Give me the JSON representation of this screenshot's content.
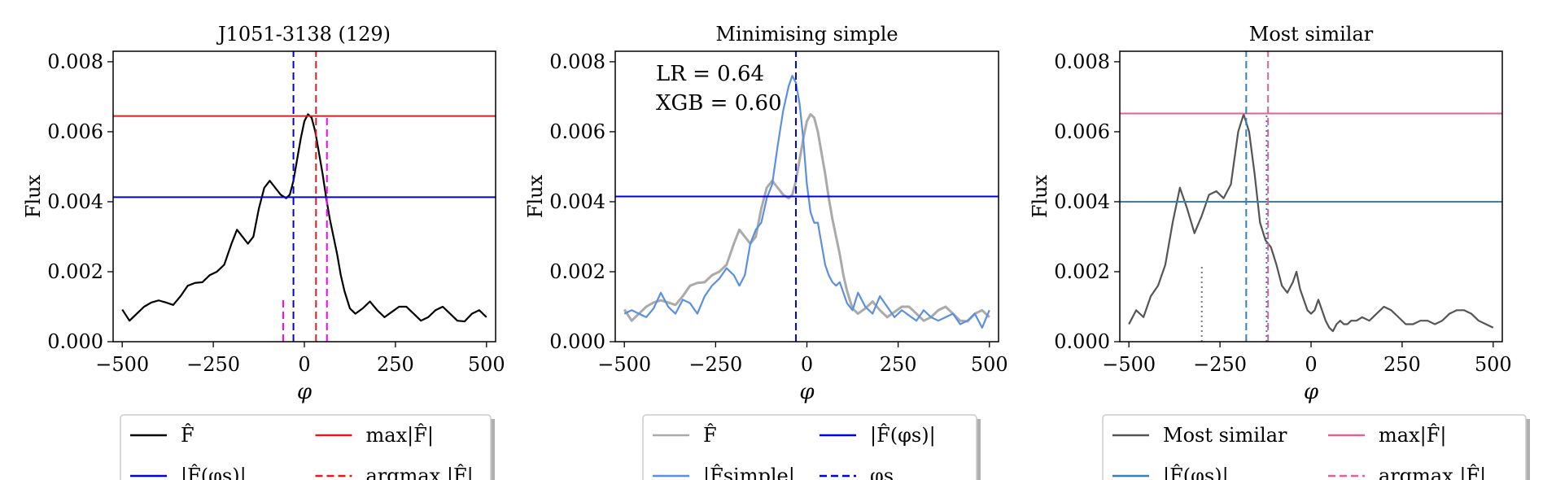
{
  "chart_data": [
    {
      "type": "line",
      "title": "J1051-3138 (129)",
      "xlabel": "φ",
      "ylabel": "Flux",
      "xlim": [
        -525,
        525
      ],
      "ylim": [
        0,
        0.0083
      ],
      "xticks": [
        -500,
        -250,
        0,
        250,
        500
      ],
      "xtick_labels": [
        "−500",
        "−250",
        "0",
        "250",
        "500"
      ],
      "yticks": [
        0,
        0.002,
        0.004,
        0.006,
        0.008
      ],
      "ytick_labels": [
        "0.000",
        "0.002",
        "0.004",
        "0.006",
        "0.008"
      ],
      "series": [
        {
          "name": "F̂",
          "color": "#000000",
          "style": "solid",
          "x": [
            -500,
            -480,
            -460,
            -440,
            -420,
            -400,
            -380,
            -360,
            -340,
            -320,
            -300,
            -280,
            -260,
            -240,
            -220,
            -200,
            -185,
            -170,
            -155,
            -140,
            -125,
            -110,
            -95,
            -80,
            -65,
            -50,
            -40,
            -30,
            -20,
            -10,
            0,
            10,
            20,
            30,
            40,
            50,
            60,
            70,
            80,
            90,
            100,
            110,
            125,
            140,
            160,
            180,
            200,
            220,
            240,
            260,
            280,
            300,
            320,
            340,
            360,
            380,
            400,
            420,
            440,
            460,
            480,
            500
          ],
          "y": [
            0.00092,
            0.0006,
            0.0008,
            0.001,
            0.00112,
            0.00118,
            0.00112,
            0.00105,
            0.0013,
            0.0016,
            0.00168,
            0.0017,
            0.0019,
            0.002,
            0.0022,
            0.0028,
            0.0032,
            0.003,
            0.0028,
            0.003,
            0.0038,
            0.0044,
            0.0046,
            0.0044,
            0.0042,
            0.0041,
            0.0042,
            0.0046,
            0.0052,
            0.0058,
            0.0063,
            0.0065,
            0.0064,
            0.006,
            0.0054,
            0.0048,
            0.0041,
            0.0035,
            0.003,
            0.0025,
            0.0019,
            0.00145,
            0.00095,
            0.0008,
            0.00095,
            0.00115,
            0.0009,
            0.0007,
            0.00085,
            0.001,
            0.001,
            0.0008,
            0.0006,
            0.0007,
            0.0009,
            0.001,
            0.0008,
            0.0006,
            0.00058,
            0.0008,
            0.0009,
            0.0007
          ]
        }
      ],
      "hlines": [
        {
          "name": "max|F̂|",
          "y": 0.00645,
          "color": "#e31a1c",
          "style": "solid"
        },
        {
          "name": "|F̂(φs)|",
          "y": 0.00413,
          "color": "#0000dd",
          "style": "solid"
        }
      ],
      "vlines": [
        {
          "name": "φs",
          "x": -30,
          "color": "#0000dd",
          "style": "dashed",
          "ymax": 0.0083
        },
        {
          "name": "argmax |F̂|",
          "x": 32,
          "color": "#e31a1c",
          "style": "dashed",
          "ymax": 0.0083
        },
        {
          "name": "marker-left",
          "x": -58,
          "color": "#ff00ff",
          "style": "dashed",
          "ymax": 0.0013
        },
        {
          "name": "marker-right",
          "x": 62,
          "color": "#ff00ff",
          "style": "dashed",
          "ymax": 0.0064
        }
      ],
      "legend": {
        "placement": "bottom",
        "entries": [
          {
            "label": "F̂",
            "color": "#000000",
            "style": "solid"
          },
          {
            "label": "max|F̂|",
            "color": "#e31a1c",
            "style": "solid"
          },
          {
            "label": "|F̂(φs)|",
            "color": "#0000dd",
            "style": "solid"
          },
          {
            "label": "argmax |F̂|",
            "color": "#e31a1c",
            "style": "dashed"
          }
        ]
      }
    },
    {
      "type": "line",
      "title": "Minimising simple",
      "xlabel": "φ",
      "ylabel": "Flux",
      "xlim": [
        -525,
        525
      ],
      "ylim": [
        0,
        0.0083
      ],
      "xticks": [
        -500,
        -250,
        0,
        250,
        500
      ],
      "xtick_labels": [
        "−500",
        "−250",
        "0",
        "250",
        "500"
      ],
      "yticks": [
        0,
        0.002,
        0.004,
        0.006,
        0.008
      ],
      "ytick_labels": [
        "0.000",
        "0.002",
        "0.004",
        "0.006",
        "0.008"
      ],
      "annotations": [
        "LR = 0.64",
        "XGB = 0.60"
      ],
      "series": [
        {
          "name": "F̂",
          "color": "#aaaaaa",
          "style": "solid",
          "x": [
            -500,
            -480,
            -460,
            -440,
            -420,
            -400,
            -380,
            -360,
            -340,
            -320,
            -300,
            -280,
            -260,
            -240,
            -220,
            -200,
            -185,
            -170,
            -155,
            -140,
            -125,
            -110,
            -95,
            -80,
            -65,
            -50,
            -40,
            -30,
            -20,
            -10,
            0,
            10,
            20,
            30,
            40,
            50,
            60,
            70,
            80,
            90,
            100,
            110,
            125,
            140,
            160,
            180,
            200,
            220,
            240,
            260,
            280,
            300,
            320,
            340,
            360,
            380,
            400,
            420,
            440,
            460,
            480,
            500
          ],
          "y": [
            0.00092,
            0.0006,
            0.0008,
            0.001,
            0.00112,
            0.00118,
            0.00112,
            0.00105,
            0.0013,
            0.0016,
            0.00168,
            0.0017,
            0.0019,
            0.002,
            0.0022,
            0.0028,
            0.0032,
            0.003,
            0.0028,
            0.003,
            0.0038,
            0.0044,
            0.0046,
            0.0044,
            0.0042,
            0.0041,
            0.0042,
            0.0046,
            0.0052,
            0.0058,
            0.0063,
            0.0065,
            0.0064,
            0.006,
            0.0054,
            0.0048,
            0.0041,
            0.0035,
            0.003,
            0.0025,
            0.0019,
            0.00145,
            0.00095,
            0.0008,
            0.00095,
            0.00115,
            0.0009,
            0.0007,
            0.00085,
            0.001,
            0.001,
            0.0008,
            0.0006,
            0.0007,
            0.0009,
            0.001,
            0.0008,
            0.0006,
            0.00058,
            0.0008,
            0.0009,
            0.0007
          ]
        },
        {
          "name": "|F̂simple|",
          "color": "#5b8fe0",
          "style": "solid",
          "x": [
            -500,
            -480,
            -460,
            -440,
            -420,
            -400,
            -380,
            -360,
            -340,
            -320,
            -300,
            -280,
            -260,
            -240,
            -220,
            -200,
            -185,
            -170,
            -155,
            -140,
            -125,
            -110,
            -95,
            -80,
            -65,
            -50,
            -40,
            -30,
            -20,
            -10,
            0,
            10,
            20,
            30,
            40,
            50,
            60,
            70,
            80,
            90,
            100,
            110,
            125,
            140,
            160,
            180,
            200,
            220,
            240,
            260,
            280,
            300,
            320,
            340,
            360,
            380,
            400,
            420,
            440,
            460,
            480,
            500
          ],
          "y": [
            0.0008,
            0.0009,
            0.0008,
            0.0007,
            0.00095,
            0.0014,
            0.001,
            0.0008,
            0.0012,
            0.0011,
            0.0008,
            0.0013,
            0.0016,
            0.0018,
            0.0021,
            0.0019,
            0.0016,
            0.0019,
            0.0028,
            0.0032,
            0.0034,
            0.0041,
            0.0045,
            0.0056,
            0.0066,
            0.0073,
            0.0076,
            0.0074,
            0.0068,
            0.0058,
            0.0045,
            0.0037,
            0.0034,
            0.0034,
            0.0028,
            0.0022,
            0.0019,
            0.0017,
            0.0016,
            0.0017,
            0.0014,
            0.0011,
            0.0009,
            0.0014,
            0.001,
            0.0008,
            0.0013,
            0.001,
            0.0007,
            0.0009,
            0.00075,
            0.0006,
            0.0009,
            0.0007,
            0.0006,
            0.0007,
            0.0008,
            0.0005,
            0.0006,
            0.0008,
            0.0004,
            0.0009
          ]
        }
      ],
      "hlines": [
        {
          "name": "|F̂(φs)|",
          "y": 0.00415,
          "color": "#0000dd",
          "style": "solid"
        }
      ],
      "vlines": [
        {
          "name": "φs",
          "x": -30,
          "color": "#0000dd",
          "style": "dashed",
          "ymax": 0.0083
        }
      ],
      "legend": {
        "placement": "bottom",
        "entries": [
          {
            "label": "F̂",
            "color": "#aaaaaa",
            "style": "solid"
          },
          {
            "label": "|F̂(φs)|",
            "color": "#0000dd",
            "style": "solid"
          },
          {
            "label": "|F̂simple|",
            "color": "#5b8fe0",
            "style": "solid"
          },
          {
            "label": "φs",
            "color": "#0000dd",
            "style": "dashed"
          }
        ]
      }
    },
    {
      "type": "line",
      "title": "Most similar",
      "xlabel": "φ",
      "ylabel": "Flux",
      "xlim": [
        -525,
        525
      ],
      "ylim": [
        0,
        0.0083
      ],
      "xticks": [
        -500,
        -250,
        0,
        250,
        500
      ],
      "xtick_labels": [
        "−500",
        "−250",
        "0",
        "250",
        "500"
      ],
      "yticks": [
        0,
        0.002,
        0.004,
        0.006,
        0.008
      ],
      "ytick_labels": [
        "0.000",
        "0.002",
        "0.004",
        "0.006",
        "0.008"
      ],
      "series": [
        {
          "name": "Most similar",
          "color": "#555555",
          "style": "solid",
          "x": [
            -500,
            -480,
            -460,
            -440,
            -420,
            -400,
            -380,
            -360,
            -340,
            -320,
            -300,
            -280,
            -260,
            -240,
            -220,
            -200,
            -185,
            -170,
            -155,
            -140,
            -125,
            -110,
            -95,
            -80,
            -65,
            -50,
            -40,
            -30,
            -20,
            -10,
            0,
            10,
            20,
            30,
            40,
            50,
            60,
            70,
            80,
            90,
            100,
            110,
            125,
            140,
            160,
            180,
            200,
            220,
            240,
            260,
            280,
            300,
            320,
            340,
            360,
            380,
            400,
            420,
            440,
            460,
            480,
            500
          ],
          "y": [
            0.0005,
            0.0009,
            0.0007,
            0.0013,
            0.0016,
            0.0022,
            0.0034,
            0.0044,
            0.0038,
            0.0031,
            0.0036,
            0.0042,
            0.0043,
            0.0041,
            0.0045,
            0.006,
            0.0065,
            0.006,
            0.0048,
            0.0034,
            0.0029,
            0.0027,
            0.0022,
            0.0016,
            0.0014,
            0.0017,
            0.002,
            0.0015,
            0.0012,
            0.0009,
            0.0008,
            0.0009,
            0.0012,
            0.0009,
            0.0006,
            0.0004,
            0.0003,
            0.0005,
            0.0006,
            0.0005,
            0.0005,
            0.0006,
            0.0006,
            0.0007,
            0.0006,
            0.0008,
            0.001,
            0.0009,
            0.0007,
            0.0005,
            0.0005,
            0.0006,
            0.0006,
            0.0005,
            0.0006,
            0.0008,
            0.0009,
            0.0009,
            0.0008,
            0.0006,
            0.0005,
            0.0004
          ]
        }
      ],
      "hlines": [
        {
          "name": "max|F̂|",
          "y": 0.00652,
          "color": "#e0609a",
          "style": "solid"
        },
        {
          "name": "|F̂(φs)|",
          "y": 0.004,
          "color": "#3a7fb5",
          "style": "solid"
        }
      ],
      "vlines": [
        {
          "name": "φs",
          "x": -178,
          "color": "#3a7fb5",
          "style": "dashed",
          "ymax": 0.0083
        },
        {
          "name": "argmax |F̂|",
          "x": -118,
          "color": "#e0609a",
          "style": "dashed",
          "ymax": 0.0083
        },
        {
          "name": "argmax-overlap",
          "x": -122,
          "color": "#3a7fb5",
          "style": "dotted",
          "ymax": 0.0065
        },
        {
          "name": "marker-left",
          "x": -300,
          "color": "#777777",
          "style": "dotted",
          "ymax": 0.0022
        }
      ],
      "legend": {
        "placement": "bottom",
        "entries": [
          {
            "label": "Most similar",
            "color": "#555555",
            "style": "solid"
          },
          {
            "label": "max|F̂|",
            "color": "#e0609a",
            "style": "solid"
          },
          {
            "label": "|F̂(φs)|",
            "color": "#3a7fb5",
            "style": "solid"
          },
          {
            "label": "argmax |F̂|",
            "color": "#e0609a",
            "style": "dashed"
          }
        ]
      }
    }
  ]
}
